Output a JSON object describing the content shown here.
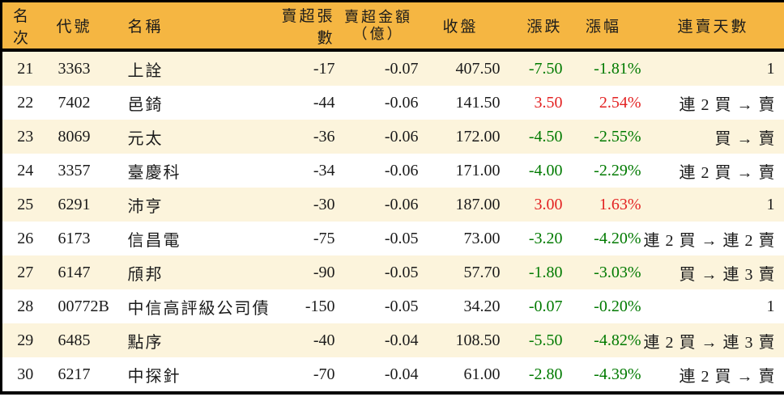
{
  "colors": {
    "header_bg": "#F5B642",
    "alt_row_bg": "#FCF4DC",
    "row_bg": "#FFFFFF",
    "border": "#000000",
    "text": "#1B1B1B",
    "positive_red": "#E32222",
    "negative_green": "#007A00"
  },
  "table": {
    "columns": [
      {
        "key": "rank",
        "label": "名次"
      },
      {
        "key": "code",
        "label": "代號"
      },
      {
        "key": "name",
        "label": "名稱"
      },
      {
        "key": "sell_shares",
        "label": "賣超張數"
      },
      {
        "key": "sell_amount",
        "label": "賣超金額",
        "label2": "（億）"
      },
      {
        "key": "close",
        "label": "收盤"
      },
      {
        "key": "change",
        "label": "漲跌"
      },
      {
        "key": "change_pct",
        "label": "漲幅"
      },
      {
        "key": "streak",
        "label": "連賣天數"
      }
    ],
    "rows": [
      {
        "rank": "21",
        "code": "3363",
        "name": "上詮",
        "sell_shares": "-17",
        "sell_amount": "-0.07",
        "close": "407.50",
        "change": "-7.50",
        "change_pct": "-1.81%",
        "streak": "1",
        "trend": "down"
      },
      {
        "rank": "22",
        "code": "7402",
        "name": "邑錡",
        "sell_shares": "-44",
        "sell_amount": "-0.06",
        "close": "141.50",
        "change": "3.50",
        "change_pct": "2.54%",
        "streak": "連 2 買 → 賣",
        "trend": "up"
      },
      {
        "rank": "23",
        "code": "8069",
        "name": "元太",
        "sell_shares": "-36",
        "sell_amount": "-0.06",
        "close": "172.00",
        "change": "-4.50",
        "change_pct": "-2.55%",
        "streak": "買 → 賣",
        "trend": "down"
      },
      {
        "rank": "24",
        "code": "3357",
        "name": "臺慶科",
        "sell_shares": "-34",
        "sell_amount": "-0.06",
        "close": "171.00",
        "change": "-4.00",
        "change_pct": "-2.29%",
        "streak": "連 2 買 → 賣",
        "trend": "down"
      },
      {
        "rank": "25",
        "code": "6291",
        "name": "沛亨",
        "sell_shares": "-30",
        "sell_amount": "-0.06",
        "close": "187.00",
        "change": "3.00",
        "change_pct": "1.63%",
        "streak": "1",
        "trend": "up"
      },
      {
        "rank": "26",
        "code": "6173",
        "name": "信昌電",
        "sell_shares": "-75",
        "sell_amount": "-0.05",
        "close": "73.00",
        "change": "-3.20",
        "change_pct": "-4.20%",
        "streak": "連 2 買 → 連 2 賣",
        "trend": "down"
      },
      {
        "rank": "27",
        "code": "6147",
        "name": "頎邦",
        "sell_shares": "-90",
        "sell_amount": "-0.05",
        "close": "57.70",
        "change": "-1.80",
        "change_pct": "-3.03%",
        "streak": "買 → 連 3 賣",
        "trend": "down"
      },
      {
        "rank": "28",
        "code": "00772B",
        "name": "中信高評級公司債",
        "sell_shares": "-150",
        "sell_amount": "-0.05",
        "close": "34.20",
        "change": "-0.07",
        "change_pct": "-0.20%",
        "streak": "1",
        "trend": "down"
      },
      {
        "rank": "29",
        "code": "6485",
        "name": "點序",
        "sell_shares": "-40",
        "sell_amount": "-0.04",
        "close": "108.50",
        "change": "-5.50",
        "change_pct": "-4.82%",
        "streak": "連 2 買 → 連 3 賣",
        "trend": "down"
      },
      {
        "rank": "30",
        "code": "6217",
        "name": "中探針",
        "sell_shares": "-70",
        "sell_amount": "-0.04",
        "close": "61.00",
        "change": "-2.80",
        "change_pct": "-4.39%",
        "streak": "連 2 買 → 賣",
        "trend": "down"
      }
    ]
  }
}
